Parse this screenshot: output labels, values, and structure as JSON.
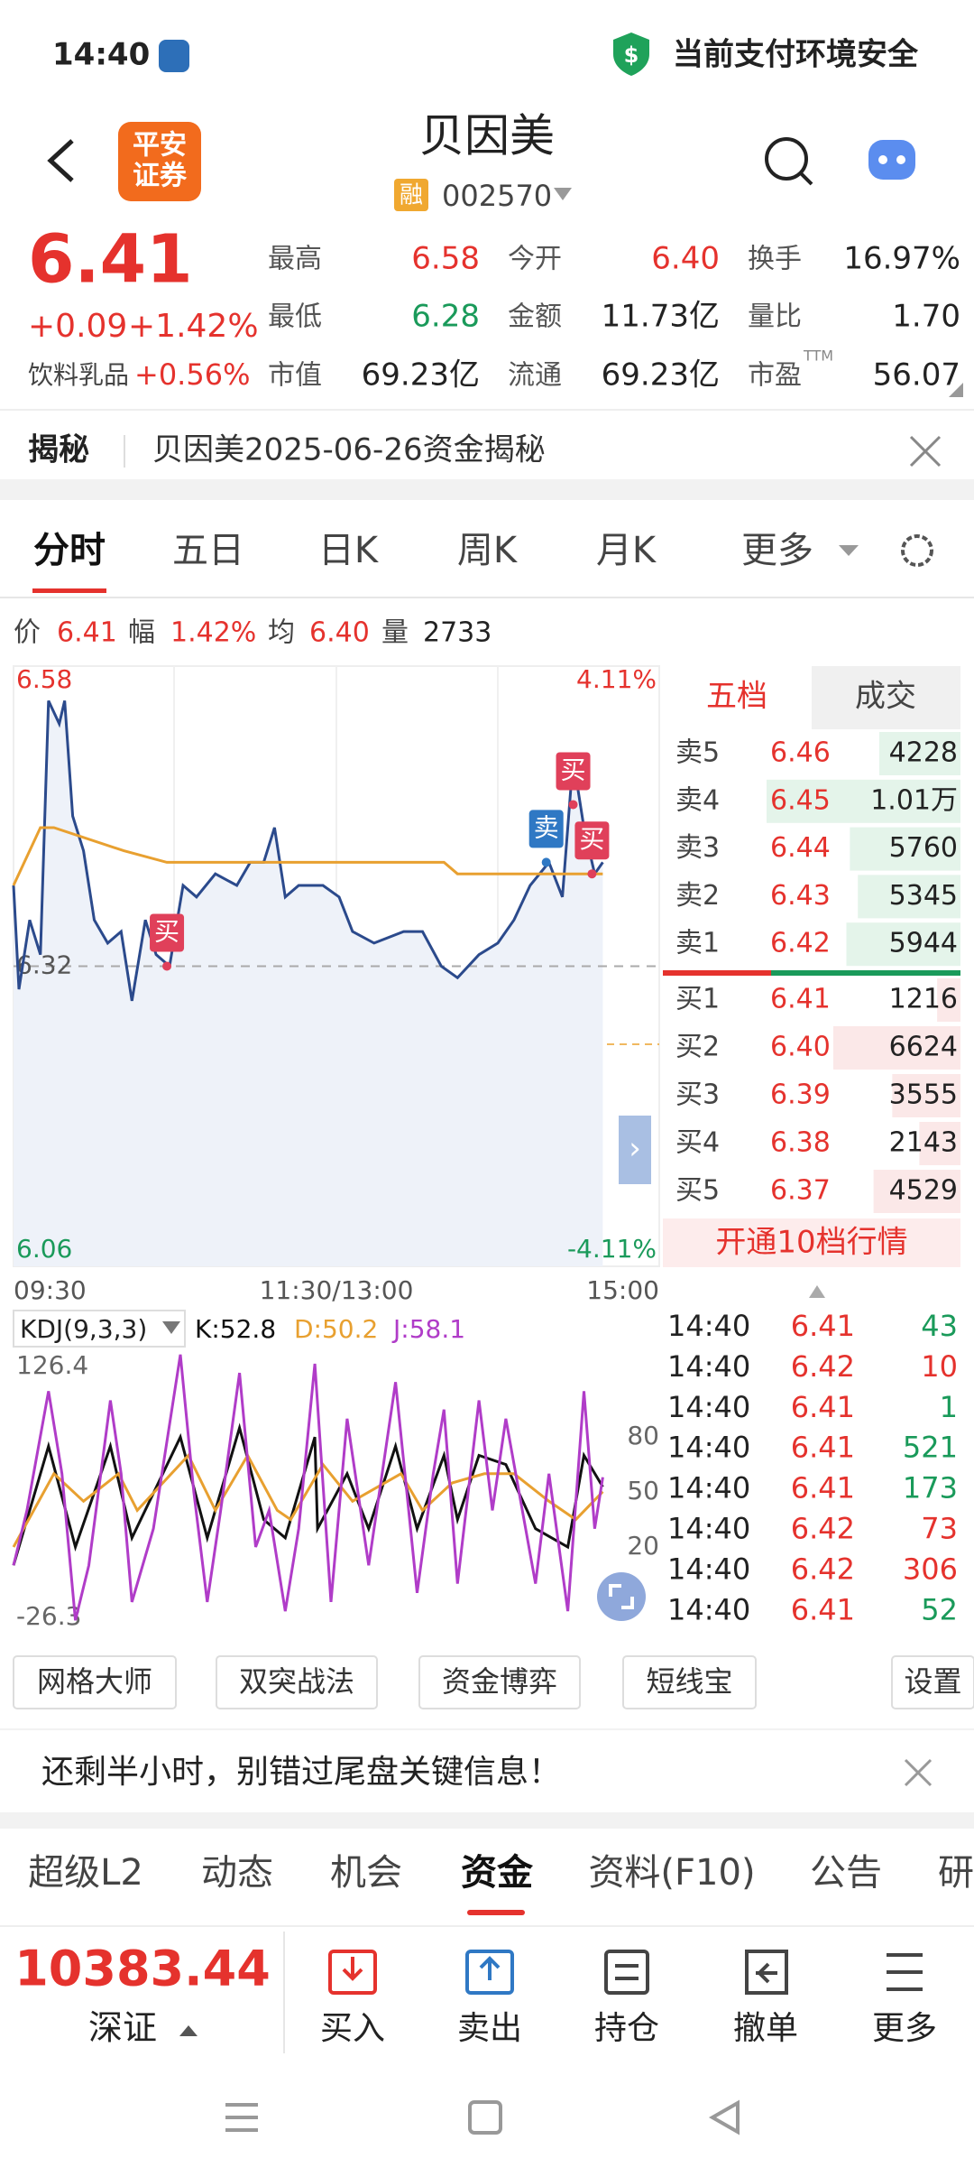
{
  "status_bar": {
    "time": "14:40",
    "security": "当前支付环境安全"
  },
  "header": {
    "logo_lines": [
      "平安",
      "证券"
    ],
    "title": "贝因美",
    "badge": "融",
    "code": "002570"
  },
  "quote": {
    "price": "6.41",
    "change": "+0.09",
    "change_pct": "+1.42%",
    "sector": "饮料乳品",
    "sector_pct": "+0.56%",
    "stats": [
      {
        "label": "最高",
        "value": "6.58",
        "color": "#e5322d"
      },
      {
        "label": "今开",
        "value": "6.40",
        "color": "#e5322d"
      },
      {
        "label": "换手",
        "value": "16.97%",
        "color": "#222222"
      },
      {
        "label": "最低",
        "value": "6.28",
        "color": "#1a9a5a"
      },
      {
        "label": "金额",
        "value": "11.73亿",
        "color": "#222222"
      },
      {
        "label": "量比",
        "value": "1.70",
        "color": "#222222"
      },
      {
        "label": "市值",
        "value": "69.23亿",
        "color": "#222222"
      },
      {
        "label": "流通",
        "value": "69.23亿",
        "color": "#222222"
      },
      {
        "label": "市盈",
        "sup": "TTM",
        "value": "56.07",
        "color": "#222222"
      }
    ]
  },
  "notice": {
    "tag": "揭秘",
    "text": "贝因美2025-06-26资金揭秘"
  },
  "tabs": [
    "分时",
    "五日",
    "日K",
    "周K",
    "月K",
    "更多"
  ],
  "info_row": [
    {
      "label": "价",
      "value": "6.41",
      "color": "#e5322d"
    },
    {
      "label": "幅",
      "value": "1.42%",
      "color": "#e5322d"
    },
    {
      "label": "均",
      "value": "6.40",
      "color": "#e5322d"
    },
    {
      "label": "量",
      "value": "2733",
      "color": "#222222"
    }
  ],
  "chart_data": [
    {
      "type": "line",
      "xlim": [
        0,
        240
      ],
      "xticks": [
        {
          "value": 0,
          "label": "09:30"
        },
        {
          "value": 120,
          "label": "11:30/13:00"
        },
        {
          "value": 240,
          "label": "15:00"
        }
      ],
      "ylim": [
        6.06,
        6.58
      ],
      "yticks": [
        6.58,
        6.32,
        6.06
      ],
      "y2lim": [
        -4.11,
        4.11
      ],
      "y2ticks": [
        {
          "value": 4.11,
          "label": "4.11%"
        },
        {
          "value": -4.11,
          "label": "-4.11%"
        }
      ],
      "series": [
        {
          "name": "价",
          "color": "#2b4a8c",
          "x": [
            0,
            2,
            6,
            10,
            13,
            17,
            19,
            22,
            26,
            30,
            35,
            40,
            44,
            49,
            53,
            58,
            63,
            68,
            75,
            83,
            88,
            93,
            97,
            101,
            106,
            115,
            121,
            126,
            134,
            145,
            152,
            159,
            165,
            173,
            180,
            186,
            192,
            199,
            204,
            208,
            212,
            216,
            219
          ],
          "values": [
            6.39,
            6.3,
            6.36,
            6.33,
            6.55,
            6.53,
            6.55,
            6.45,
            6.42,
            6.36,
            6.34,
            6.35,
            6.29,
            6.36,
            6.33,
            6.32,
            6.39,
            6.38,
            6.4,
            6.39,
            6.41,
            6.41,
            6.44,
            6.38,
            6.39,
            6.39,
            6.38,
            6.35,
            6.34,
            6.35,
            6.35,
            6.32,
            6.31,
            6.33,
            6.34,
            6.36,
            6.39,
            6.41,
            6.38,
            6.5,
            6.44,
            6.4,
            6.41
          ]
        },
        {
          "name": "均",
          "color": "#e8a030",
          "x": [
            0,
            10,
            15,
            41,
            57,
            160,
            165,
            201,
            219
          ],
          "values": [
            6.39,
            6.44,
            6.44,
            6.42,
            6.41,
            6.41,
            6.4,
            6.4,
            6.4
          ]
        }
      ],
      "markers": [
        {
          "label": "买",
          "x": 57,
          "y": 6.32,
          "color": "#e0405a"
        },
        {
          "label": "卖",
          "x": 198,
          "y": 6.41,
          "color": "#2f78c4"
        },
        {
          "label": "买",
          "x": 208,
          "y": 6.46,
          "color": "#e0405a"
        },
        {
          "label": "买",
          "x": 215,
          "y": 6.4,
          "color": "#e0405a"
        }
      ]
    },
    {
      "type": "line",
      "title": "KDJ(9,3,3)",
      "xlim": [
        0,
        240
      ],
      "ylim": [
        -26.3,
        126.4
      ],
      "yticks": [
        126.4,
        -26.3
      ],
      "y2lim": [
        -26.3,
        126.4
      ],
      "y2ticks": [
        80,
        50,
        20
      ],
      "series": [
        {
          "name": "K:52.8",
          "color": "#111111",
          "x": [
            0,
            13,
            23,
            36,
            44,
            62,
            72,
            84,
            93,
            101,
            112,
            113,
            124,
            132,
            142,
            150,
            160,
            165,
            173,
            183,
            194,
            206,
            212,
            219
          ],
          "values": [
            10,
            75,
            20,
            75,
            25,
            80,
            25,
            85,
            35,
            25,
            80,
            30,
            60,
            30,
            75,
            30,
            70,
            35,
            70,
            65,
            30,
            20,
            70,
            52.8
          ]
        },
        {
          "name": "D:50.2",
          "color": "#e8a030",
          "x": [
            0,
            15,
            26,
            39,
            46,
            65,
            75,
            87,
            98,
            103,
            115,
            126,
            144,
            152,
            163,
            175,
            186,
            199,
            209,
            219
          ],
          "values": [
            20,
            60,
            45,
            60,
            40,
            70,
            40,
            70,
            40,
            35,
            65,
            45,
            60,
            40,
            55,
            60,
            60,
            45,
            35,
            50.2
          ]
        },
        {
          "name": "J:58.1",
          "color": "#b03cc8",
          "x": [
            0,
            5,
            13,
            18,
            23,
            28,
            36,
            40,
            44,
            52,
            62,
            67,
            72,
            77,
            84,
            90,
            95,
            101,
            106,
            112,
            118,
            124,
            132,
            142,
            150,
            156,
            160,
            165,
            173,
            178,
            183,
            194,
            199,
            206,
            212,
            216,
            219
          ],
          "values": [
            10,
            40,
            105,
            60,
            -20,
            10,
            100,
            60,
            -10,
            30,
            125,
            50,
            -10,
            40,
            115,
            20,
            40,
            -15,
            30,
            120,
            -10,
            90,
            10,
            110,
            -5,
            60,
            95,
            0,
            100,
            40,
            90,
            0,
            60,
            -15,
            105,
            30,
            58.1
          ]
        }
      ]
    }
  ],
  "order_book": {
    "tabs": [
      "五档",
      "成交"
    ],
    "price_color": "#e5322d",
    "asks": [
      {
        "label": "卖5",
        "price": "6.46",
        "volume": 4228
      },
      {
        "label": "卖4",
        "price": "6.45",
        "volume": 10100,
        "volume_label": "1.01万"
      },
      {
        "label": "卖3",
        "price": "6.44",
        "volume": 5760
      },
      {
        "label": "卖2",
        "price": "6.43",
        "volume": 5345
      },
      {
        "label": "卖1",
        "price": "6.42",
        "volume": 5944
      }
    ],
    "bids": [
      {
        "label": "买1",
        "price": "6.41",
        "volume": 1216
      },
      {
        "label": "买2",
        "price": "6.40",
        "volume": 6624
      },
      {
        "label": "买3",
        "price": "6.39",
        "volume": 3555
      },
      {
        "label": "买4",
        "price": "6.38",
        "volume": 2143
      },
      {
        "label": "买5",
        "price": "6.37",
        "volume": 4529
      }
    ],
    "upgrade": "开通10档行情"
  },
  "trades": [
    {
      "time": "14:40",
      "price": "6.41",
      "volume": "43",
      "color": "#1a9a5a"
    },
    {
      "time": "14:40",
      "price": "6.42",
      "volume": "10",
      "color": "#e5322d"
    },
    {
      "time": "14:40",
      "price": "6.41",
      "volume": "1",
      "color": "#1a9a5a"
    },
    {
      "time": "14:40",
      "price": "6.41",
      "volume": "521",
      "color": "#1a9a5a"
    },
    {
      "time": "14:40",
      "price": "6.41",
      "volume": "173",
      "color": "#1a9a5a"
    },
    {
      "time": "14:40",
      "price": "6.42",
      "volume": "73",
      "color": "#e5322d"
    },
    {
      "time": "14:40",
      "price": "6.42",
      "volume": "306",
      "color": "#e5322d"
    },
    {
      "time": "14:40",
      "price": "6.41",
      "volume": "52",
      "color": "#1a9a5a"
    }
  ],
  "tools": [
    "网格大师",
    "双突战法",
    "资金博弈",
    "短线宝",
    "设置"
  ],
  "banner": "还剩半小时，别错过尾盘关键信息！",
  "bottom_tabs": [
    "超级L2",
    "动态",
    "机会",
    "资金",
    "资料(F10)",
    "公告",
    "研"
  ],
  "index": {
    "value": "10383.44",
    "name": "深证"
  },
  "actions": [
    "买入",
    "卖出",
    "持仓",
    "撤单",
    "更多"
  ]
}
